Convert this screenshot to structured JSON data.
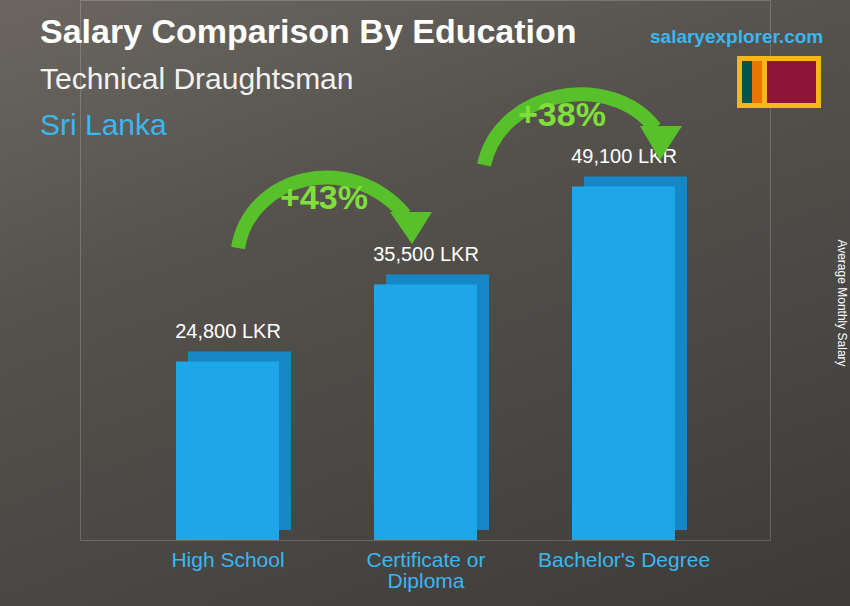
{
  "chart_data": {
    "type": "bar",
    "title": "Salary Comparison By Education",
    "subtitle": "Technical Draughtsman",
    "region": "Sri Lanka",
    "source": "salaryexplorer.com",
    "y_label": "Average Monthly Salary",
    "categories": [
      "High School",
      "Certificate or Diploma",
      "Bachelor's Degree"
    ],
    "values": [
      24800,
      35500,
      49100
    ],
    "value_labels": [
      "24,800 LKR",
      "35,500 LKR",
      "49,100 LKR"
    ],
    "annotations": [
      "+43%",
      "+38%"
    ],
    "color": "#1ea7e8",
    "ylim": [
      0,
      75000
    ],
    "yticks": [],
    "data_labels": true,
    "tick_labels": "x",
    "grid": false
  }
}
